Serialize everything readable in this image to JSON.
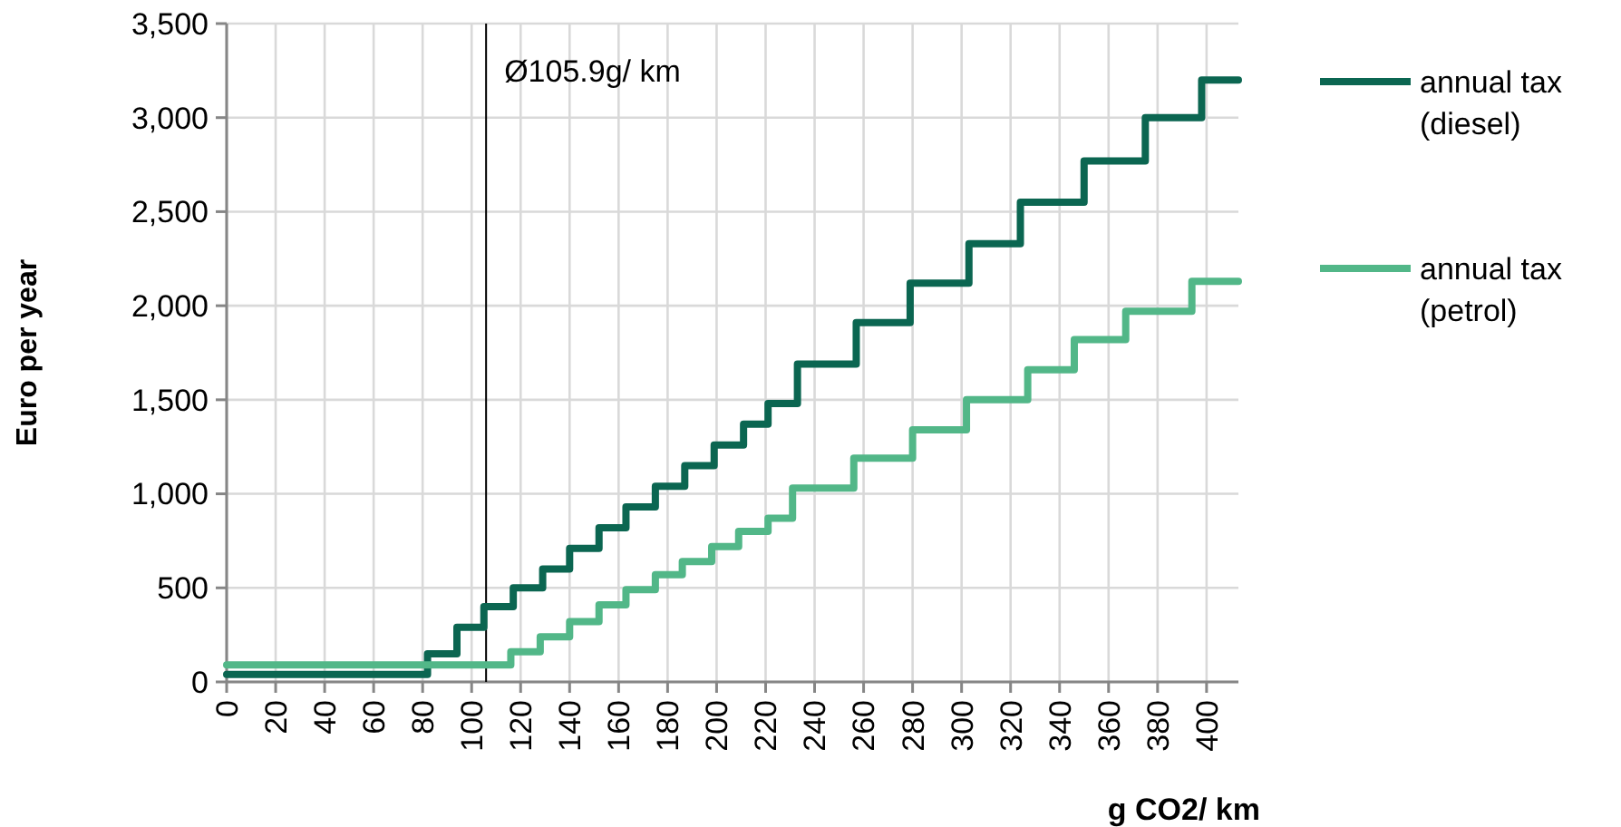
{
  "chart_data": {
    "type": "step",
    "xlabel": "g CO2/ km",
    "ylabel": "Euro per year",
    "xlim": [
      0,
      413
    ],
    "xticks": [
      0,
      20,
      40,
      60,
      80,
      100,
      120,
      140,
      160,
      180,
      200,
      220,
      240,
      260,
      280,
      300,
      320,
      340,
      360,
      380,
      400
    ],
    "ylim": [
      0,
      3500
    ],
    "yticks": [
      {
        "value": 0,
        "label": "0"
      },
      {
        "value": 500,
        "label": "500"
      },
      {
        "value": 1000,
        "label": "1,000"
      },
      {
        "value": 1500,
        "label": "1,500"
      },
      {
        "value": 2000,
        "label": "2,000"
      },
      {
        "value": 2500,
        "label": "2,500"
      },
      {
        "value": 3000,
        "label": "3,000"
      },
      {
        "value": 3500,
        "label": "3,500"
      }
    ],
    "grid": true,
    "legend": "right",
    "line_style": "solid",
    "marker": "none",
    "series": [
      {
        "name": "annual tax (diesel)",
        "color": "#0b6651",
        "x": [
          0,
          82,
          94,
          105,
          117,
          129,
          140,
          152,
          163,
          175,
          187,
          199,
          211,
          221,
          233,
          257,
          279,
          303,
          324,
          350,
          375,
          398,
          413
        ],
        "values": [
          40,
          150,
          290,
          400,
          500,
          600,
          710,
          820,
          930,
          1040,
          1150,
          1260,
          1370,
          1480,
          1690,
          1910,
          2120,
          2330,
          2550,
          2770,
          3000,
          3200,
          3200
        ]
      },
      {
        "name": "annual tax (petrol)",
        "color": "#52b788",
        "x": [
          0,
          116,
          128,
          140,
          152,
          163,
          175,
          186,
          198,
          209,
          221,
          231,
          256,
          280,
          302,
          327,
          346,
          367,
          394,
          413
        ],
        "values": [
          90,
          160,
          240,
          320,
          410,
          490,
          570,
          640,
          720,
          800,
          870,
          1030,
          1190,
          1340,
          1500,
          1660,
          1820,
          1970,
          2130,
          2130
        ]
      }
    ],
    "ref_lines": [
      {
        "axis": "x",
        "value": 105.9,
        "label": "Ø105.9g/ km",
        "color": "#000000"
      }
    ]
  }
}
